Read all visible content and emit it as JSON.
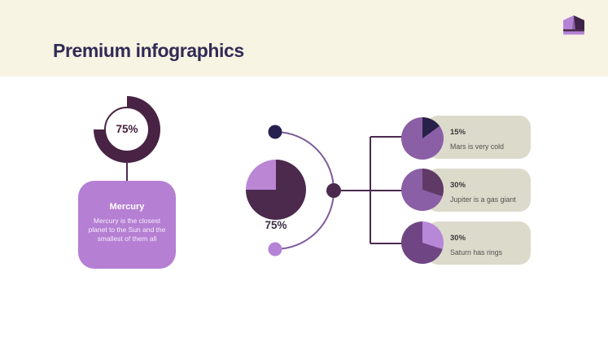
{
  "header": {
    "title": "Premium infographics"
  },
  "logo": {
    "name": "crown",
    "colors": {
      "light": "#b583d6",
      "mid": "#8a5fa6",
      "dark": "#3f2347",
      "stripe": "#4b2a4e"
    }
  },
  "palette": {
    "header_bg": "#f8f4e3",
    "title": "#312b56",
    "connector": "#4b2a4e",
    "arc": "#7e5b9b",
    "card_bg": "#b57fd3",
    "label_card_bg": "#dcdacb",
    "label_percent": "#3c3b3b",
    "label_desc": "#55524f"
  },
  "mercury": {
    "donut_label": "75%",
    "card_title": "Mercury",
    "card_description": "Mercury is the closest planet to the Sun and the smallest of them all"
  },
  "center": {
    "pie_label": "75%",
    "dot_colors": [
      "#262051",
      "#4b2a4e",
      "#b583d6"
    ]
  },
  "planet_items": [
    {
      "percent": "15%",
      "description": "Mars is very cold"
    },
    {
      "percent": "30%",
      "description": "Jupiter is a gas giant"
    },
    {
      "percent": "30%",
      "description": "Saturn has rings"
    }
  ],
  "chart_data": [
    {
      "id": "mercury-donut",
      "type": "pie",
      "subtype": "donut",
      "label": "75%",
      "percent": 75,
      "values": [
        {
          "name": "filled",
          "value": 75
        },
        {
          "name": "empty",
          "value": 25
        }
      ],
      "slice_color": "#482344",
      "track_color": "#ffffff",
      "caption": "Mercury"
    },
    {
      "id": "center-pie",
      "type": "pie",
      "label": "75%",
      "percent": 75,
      "values": [
        {
          "name": "filled",
          "value": 75
        },
        {
          "name": "remainder",
          "value": 25
        }
      ],
      "slice_color": "#4b2a4e",
      "base_color": "#bb87d4"
    },
    {
      "id": "mars-pie",
      "type": "pie",
      "label": "15%",
      "percent": 15,
      "values": [
        {
          "name": "slice",
          "value": 15
        },
        {
          "name": "remainder",
          "value": 85
        }
      ],
      "slice_color": "#272048",
      "base_color": "#8a5fa6",
      "caption": "Mars is very cold"
    },
    {
      "id": "jupiter-pie",
      "type": "pie",
      "label": "30%",
      "percent": 30,
      "values": [
        {
          "name": "slice",
          "value": 30
        },
        {
          "name": "remainder",
          "value": 70
        }
      ],
      "slice_color": "#5f3a66",
      "base_color": "#8a5fa6",
      "caption": "Jupiter is a gas giant"
    },
    {
      "id": "saturn-pie",
      "type": "pie",
      "label": "30%",
      "percent": 30,
      "values": [
        {
          "name": "slice",
          "value": 30
        },
        {
          "name": "remainder",
          "value": 70
        }
      ],
      "slice_color": "#b787d8",
      "base_color": "#6f4584",
      "caption": "Saturn has rings"
    }
  ]
}
